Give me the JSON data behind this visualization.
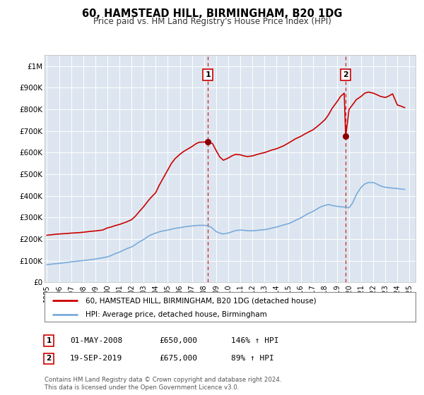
{
  "title": "60, HAMSTEAD HILL, BIRMINGHAM, B20 1DG",
  "subtitle": "Price paid vs. HM Land Registry's House Price Index (HPI)",
  "plot_bg_color": "#dde6f0",
  "ylim": [
    0,
    1050000
  ],
  "xlim_start": 1994.8,
  "xlim_end": 2025.5,
  "yticks": [
    0,
    100000,
    200000,
    300000,
    400000,
    500000,
    600000,
    700000,
    800000,
    900000,
    1000000
  ],
  "ytick_labels": [
    "£0",
    "£100K",
    "£200K",
    "£300K",
    "£400K",
    "£500K",
    "£600K",
    "£700K",
    "£800K",
    "£900K",
    "£1M"
  ],
  "xtick_years": [
    1995,
    1996,
    1997,
    1998,
    1999,
    2000,
    2001,
    2002,
    2003,
    2004,
    2005,
    2006,
    2007,
    2008,
    2009,
    2010,
    2011,
    2012,
    2013,
    2014,
    2015,
    2016,
    2017,
    2018,
    2019,
    2020,
    2021,
    2022,
    2023,
    2024,
    2025
  ],
  "red_line_color": "#cc0000",
  "blue_line_color": "#7aabdc",
  "marker_color": "#8b0000",
  "ann1_x": 2008.33,
  "ann1_y": 650000,
  "ann2_x": 2019.72,
  "ann2_y": 675000,
  "legend_label_red": "60, HAMSTEAD HILL, BIRMINGHAM, B20 1DG (detached house)",
  "legend_label_blue": "HPI: Average price, detached house, Birmingham",
  "table_entries": [
    {
      "num": "1",
      "date": "01-MAY-2008",
      "price": "£650,000",
      "hpi": "146% ↑ HPI"
    },
    {
      "num": "2",
      "date": "19-SEP-2019",
      "price": "£675,000",
      "hpi": "89% ↑ HPI"
    }
  ],
  "footnote1": "Contains HM Land Registry data © Crown copyright and database right 2024.",
  "footnote2": "This data is licensed under the Open Government Licence v3.0.",
  "red_x": [
    1995.0,
    1995.3,
    1995.6,
    1996.0,
    1996.3,
    1996.6,
    1997.0,
    1997.3,
    1997.6,
    1998.0,
    1998.3,
    1998.6,
    1999.0,
    1999.3,
    1999.6,
    2000.0,
    2000.3,
    2000.6,
    2001.0,
    2001.3,
    2001.6,
    2002.0,
    2002.3,
    2002.6,
    2003.0,
    2003.3,
    2003.6,
    2004.0,
    2004.3,
    2004.6,
    2005.0,
    2005.3,
    2005.6,
    2006.0,
    2006.3,
    2006.6,
    2007.0,
    2007.3,
    2007.6,
    2008.0,
    2008.33,
    2008.7,
    2009.0,
    2009.3,
    2009.6,
    2010.0,
    2010.3,
    2010.6,
    2011.0,
    2011.3,
    2011.6,
    2012.0,
    2012.3,
    2012.6,
    2013.0,
    2013.3,
    2013.6,
    2014.0,
    2014.3,
    2014.6,
    2015.0,
    2015.3,
    2015.6,
    2016.0,
    2016.3,
    2016.6,
    2017.0,
    2017.3,
    2017.6,
    2018.0,
    2018.3,
    2018.6,
    2019.0,
    2019.3,
    2019.6,
    2019.72,
    2020.0,
    2020.3,
    2020.6,
    2021.0,
    2021.3,
    2021.6,
    2022.0,
    2022.3,
    2022.6,
    2023.0,
    2023.3,
    2023.6,
    2024.0,
    2024.3,
    2024.6
  ],
  "red_y": [
    218000,
    220000,
    222000,
    224000,
    225000,
    226000,
    228000,
    229000,
    230000,
    232000,
    234000,
    236000,
    238000,
    240000,
    242000,
    252000,
    256000,
    262000,
    268000,
    274000,
    280000,
    290000,
    305000,
    325000,
    350000,
    372000,
    392000,
    415000,
    450000,
    480000,
    520000,
    550000,
    572000,
    592000,
    605000,
    615000,
    628000,
    640000,
    648000,
    649000,
    650000,
    642000,
    610000,
    580000,
    565000,
    575000,
    585000,
    592000,
    590000,
    585000,
    582000,
    585000,
    590000,
    595000,
    600000,
    606000,
    612000,
    618000,
    625000,
    632000,
    645000,
    655000,
    665000,
    675000,
    685000,
    694000,
    705000,
    718000,
    732000,
    752000,
    775000,
    805000,
    835000,
    860000,
    875000,
    675000,
    800000,
    822000,
    845000,
    860000,
    875000,
    880000,
    875000,
    868000,
    860000,
    855000,
    862000,
    872000,
    820000,
    815000,
    808000
  ],
  "blue_x": [
    1995.0,
    1995.3,
    1995.6,
    1996.0,
    1996.3,
    1996.6,
    1997.0,
    1997.3,
    1997.6,
    1998.0,
    1998.3,
    1998.6,
    1999.0,
    1999.3,
    1999.6,
    2000.0,
    2000.3,
    2000.6,
    2001.0,
    2001.3,
    2001.6,
    2002.0,
    2002.3,
    2002.6,
    2003.0,
    2003.3,
    2003.6,
    2004.0,
    2004.3,
    2004.6,
    2005.0,
    2005.3,
    2005.6,
    2006.0,
    2006.3,
    2006.6,
    2007.0,
    2007.3,
    2007.6,
    2008.0,
    2008.3,
    2008.6,
    2009.0,
    2009.3,
    2009.6,
    2010.0,
    2010.3,
    2010.6,
    2011.0,
    2011.3,
    2011.6,
    2012.0,
    2012.3,
    2012.6,
    2013.0,
    2013.3,
    2013.6,
    2014.0,
    2014.3,
    2014.6,
    2015.0,
    2015.3,
    2015.6,
    2016.0,
    2016.3,
    2016.6,
    2017.0,
    2017.3,
    2017.6,
    2018.0,
    2018.3,
    2018.6,
    2019.0,
    2019.3,
    2019.6,
    2020.0,
    2020.3,
    2020.6,
    2021.0,
    2021.3,
    2021.6,
    2022.0,
    2022.3,
    2022.6,
    2023.0,
    2023.3,
    2023.6,
    2024.0,
    2024.3,
    2024.6
  ],
  "blue_y": [
    82000,
    84000,
    86000,
    88000,
    90000,
    92000,
    95000,
    97000,
    99000,
    101000,
    103000,
    105000,
    108000,
    111000,
    114000,
    118000,
    124000,
    132000,
    140000,
    148000,
    156000,
    164000,
    174000,
    186000,
    198000,
    210000,
    220000,
    228000,
    234000,
    238000,
    242000,
    246000,
    250000,
    253000,
    256000,
    259000,
    261000,
    263000,
    264000,
    264000,
    262000,
    255000,
    235000,
    228000,
    224000,
    228000,
    234000,
    240000,
    242000,
    241000,
    239000,
    239000,
    240000,
    242000,
    244000,
    247000,
    251000,
    256000,
    261000,
    266000,
    272000,
    279000,
    288000,
    298000,
    308000,
    318000,
    328000,
    338000,
    348000,
    356000,
    360000,
    356000,
    352000,
    350000,
    348000,
    345000,
    368000,
    406000,
    440000,
    455000,
    462000,
    462000,
    455000,
    446000,
    440000,
    438000,
    436000,
    434000,
    432000,
    430000
  ]
}
